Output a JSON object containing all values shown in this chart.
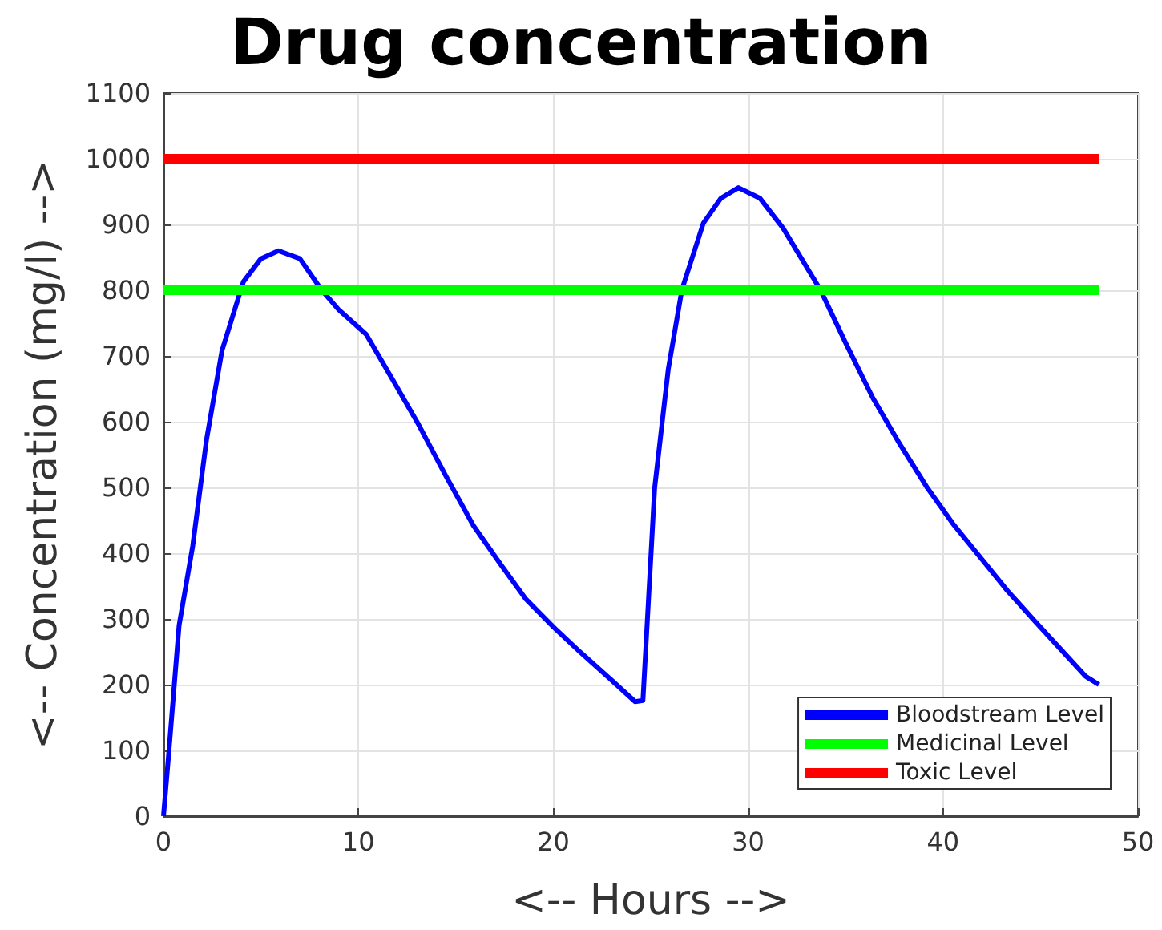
{
  "chart_data": {
    "type": "line",
    "title": "Drug concentration",
    "xlabel": "<-- Hours -->",
    "ylabel": "<-- Concentration (mg/l) -->",
    "xlim": [
      0,
      50
    ],
    "xticks": [
      0,
      10,
      20,
      30,
      40,
      50
    ],
    "ylim": [
      0,
      1100
    ],
    "yticks": [
      0,
      100,
      200,
      300,
      400,
      500,
      600,
      700,
      800,
      900,
      1000,
      1100
    ],
    "grid": true,
    "legend": "bottom right",
    "marker": "none",
    "line_style": "solid",
    "series": [
      {
        "name": "Bloodstream Level",
        "color": "#0000ff",
        "x": [
          0,
          0.25,
          0.8,
          1.5,
          2.2,
          3,
          4.1,
          5,
          5.9,
          7,
          8.1,
          9,
          10.4,
          11.8,
          13.1,
          14.5,
          15.9,
          17.3,
          18.6,
          20,
          21.4,
          22.8,
          24.2,
          24.6,
          25.2,
          25.9,
          26.6,
          27.7,
          28.6,
          29.5,
          30.6,
          31.8,
          33.7,
          35,
          36.4,
          37.8,
          39.2,
          40.5,
          41.9,
          43.3,
          44.7,
          46,
          47.3,
          48
        ],
        "values": [
          0,
          88,
          290,
          411,
          571,
          708,
          813,
          848,
          860,
          848,
          801,
          770,
          733,
          662,
          595,
          517,
          442,
          383,
          330,
          288,
          249,
          212,
          174,
          176,
          499,
          680,
          801,
          902,
          940,
          956,
          940,
          894,
          801,
          720,
          636,
          565,
          499,
          445,
          394,
          343,
          297,
          255,
          213,
          200
        ]
      },
      {
        "name": "Medicinal Level",
        "color": "#00ff00",
        "x": [
          0,
          48
        ],
        "values": [
          800,
          800
        ]
      },
      {
        "name": "Toxic Level",
        "color": "#ff0000",
        "x": [
          0,
          48
        ],
        "values": [
          1000,
          1000
        ]
      }
    ]
  }
}
